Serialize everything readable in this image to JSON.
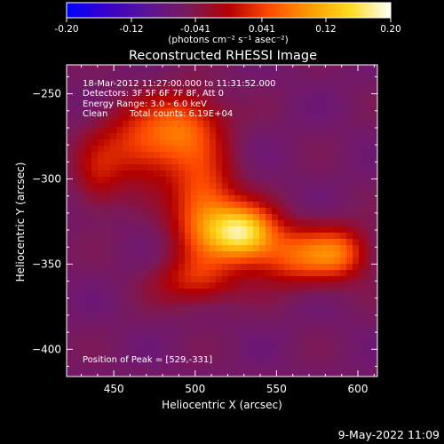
{
  "footer": {
    "timestamp": "9-May-2022 11:09"
  },
  "colorbar": {
    "tick_labels": [
      "-0.20",
      "-0.12",
      "-0.041",
      "0.041",
      "0.12",
      "0.20"
    ],
    "tick_values": [
      -0.2,
      -0.12,
      -0.041,
      0.041,
      0.12,
      0.2
    ],
    "range": [
      -0.2,
      0.2
    ],
    "unit_label": "(photons cm⁻² s⁻¹ asec⁻²)",
    "colors": [
      "#0000ff",
      "#3a00c8",
      "#5b1496",
      "#7a1a5a",
      "#b30000",
      "#ff4a00",
      "#ff9a00",
      "#ffdc20",
      "#ffffff"
    ]
  },
  "chart_data": {
    "type": "heatmap",
    "title": "Reconstructed RHESSI Image",
    "xlabel": "Heliocentric X (arcsec)",
    "ylabel": "Heliocentric Y (arcsec)",
    "xlim": [
      421,
      612
    ],
    "ylim": [
      -416,
      -233
    ],
    "xticks": [
      450,
      500,
      550,
      600
    ],
    "yticks": [
      -250,
      -300,
      -350,
      -400
    ],
    "annotations": [
      "18-Mar-2012 11:27:00.000 to 11:31:52.000",
      "Detectors: 3F 5F 6F 7F 8F, Att 0",
      "Energy Range: 3.0 - 6.0 keV",
      "Clean",
      "Total counts: 6.19E+04",
      "Position of Peak = [529,-331]"
    ],
    "peak": {
      "x": 529,
      "y": -331,
      "value": 0.2
    },
    "background_value": -0.06,
    "sources": [
      {
        "x": 529,
        "y": -331,
        "sx": 14,
        "sy": 11,
        "amp": 0.2
      },
      {
        "x": 505,
        "y": -318,
        "sx": 14,
        "sy": 22,
        "amp": 0.13
      },
      {
        "x": 468,
        "y": -280,
        "sx": 20,
        "sy": 16,
        "amp": 0.1
      },
      {
        "x": 495,
        "y": -268,
        "sx": 16,
        "sy": 14,
        "amp": 0.09
      },
      {
        "x": 440,
        "y": -300,
        "sx": 10,
        "sy": 14,
        "amp": 0.05
      },
      {
        "x": 565,
        "y": -345,
        "sx": 22,
        "sy": 12,
        "amp": 0.12
      },
      {
        "x": 590,
        "y": -343,
        "sx": 12,
        "sy": 10,
        "amp": 0.07
      },
      {
        "x": 500,
        "y": -360,
        "sx": 18,
        "sy": 10,
        "amp": 0.07
      }
    ]
  }
}
